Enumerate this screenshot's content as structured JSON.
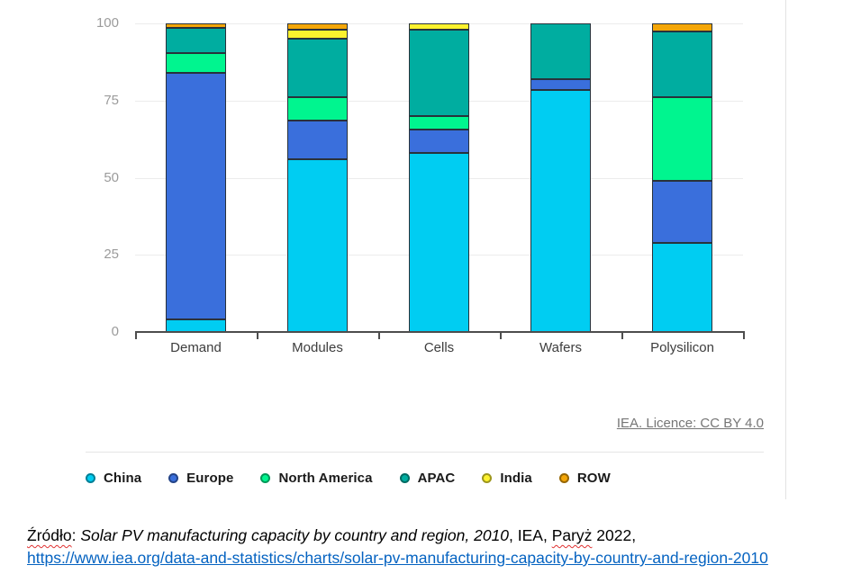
{
  "chart_data": {
    "type": "bar",
    "stacked": true,
    "title": "",
    "xlabel": "",
    "ylabel": "",
    "categories": [
      "Demand",
      "Modules",
      "Cells",
      "Wafers",
      "Polysilicon"
    ],
    "series": [
      {
        "name": "China",
        "color": "#00cdf2",
        "values": [
          4,
          56,
          58,
          78.5,
          29
        ]
      },
      {
        "name": "Europe",
        "color": "#3a6fdc",
        "values": [
          80,
          12.5,
          7.5,
          3.5,
          20
        ]
      },
      {
        "name": "North America",
        "color": "#00f58f",
        "values": [
          6.5,
          7.5,
          4.5,
          0,
          27
        ]
      },
      {
        "name": "APAC",
        "color": "#00ada0",
        "values": [
          8,
          19,
          28,
          18,
          21.5
        ]
      },
      {
        "name": "India",
        "color": "#fdf22e",
        "values": [
          0,
          3,
          2,
          0,
          0
        ]
      },
      {
        "name": "ROW",
        "color": "#f4a608",
        "values": [
          1.5,
          2,
          0,
          0,
          2.5
        ]
      }
    ],
    "ylim": [
      0,
      100
    ],
    "yticks": [
      0,
      25,
      50,
      75,
      100
    ],
    "grid": true,
    "legend_position": "bottom"
  },
  "chart_footer": {
    "licence": "IEA. Licence: CC BY 4.0"
  },
  "source": {
    "label": "Źródło",
    "label_sep": ": ",
    "title": "Solar PV manufacturing capacity by country and region, 2010",
    "after_title": ", IEA, ",
    "city": "Paryż",
    "tail": " 2022,",
    "url": "https://www.iea.org/data-and-statistics/charts/solar-pv-manufacturing-capacity-by-country-and-region-2010"
  }
}
